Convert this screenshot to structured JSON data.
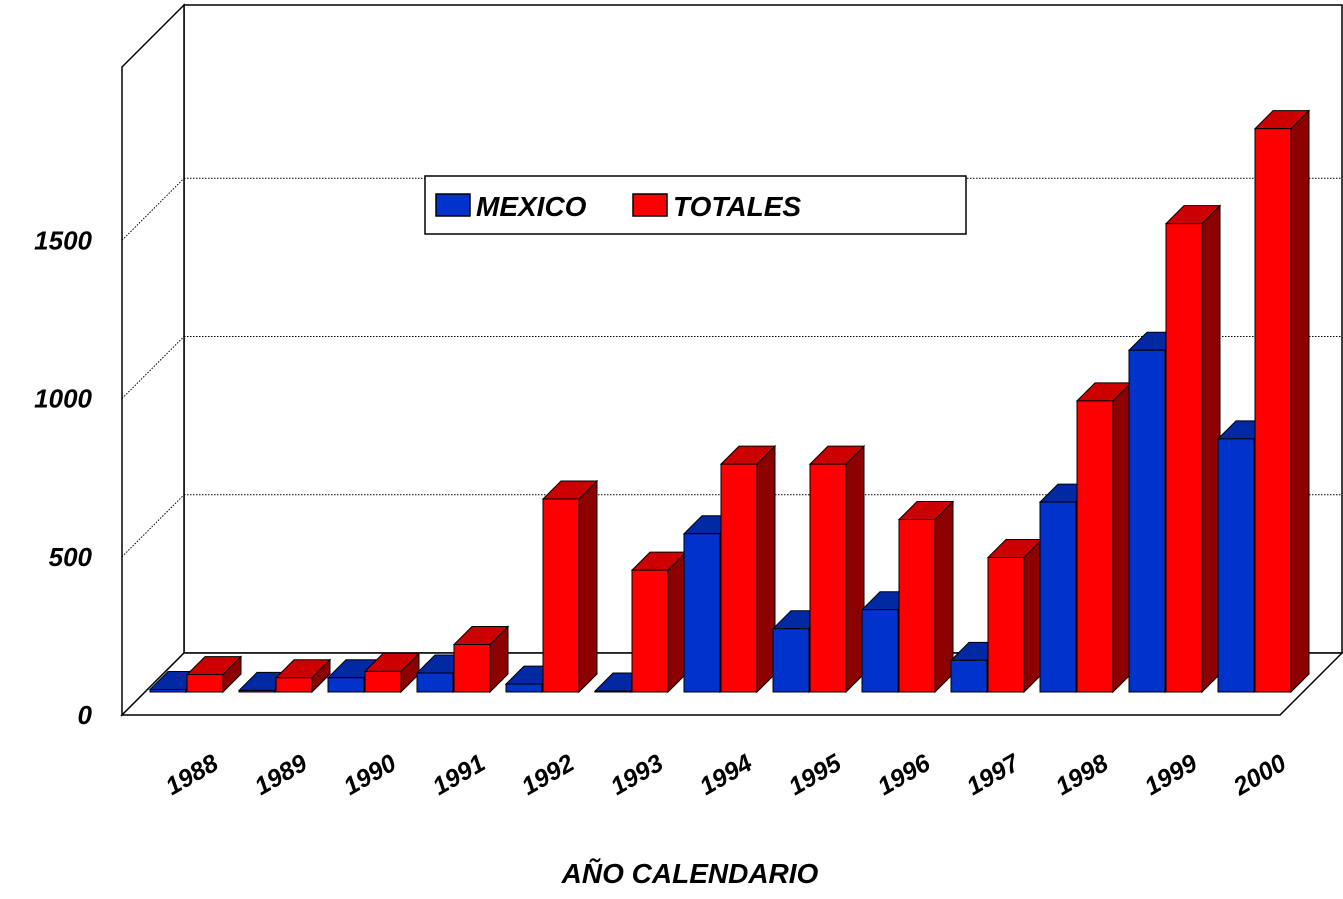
{
  "chart_data": {
    "type": "bar",
    "style": "3d-clustered-column",
    "categories": [
      "1988",
      "1989",
      "1990",
      "1991",
      "1992",
      "1993",
      "1994",
      "1995",
      "1996",
      "1997",
      "1998",
      "1999",
      "2000"
    ],
    "series": [
      {
        "name": "MEXICO",
        "color": "#0033CC",
        "values": [
          8,
          5,
          45,
          60,
          25,
          3,
          500,
          200,
          260,
          100,
          600,
          1080,
          800
        ]
      },
      {
        "name": "TOTALES",
        "color": "#FF0000",
        "values": [
          55,
          45,
          65,
          150,
          610,
          385,
          720,
          720,
          545,
          425,
          920,
          1480,
          1780
        ]
      }
    ],
    "ylim": [
      0,
      2000
    ],
    "yticks": [
      0,
      500,
      1000,
      1500
    ],
    "ytick_labels": [
      "0",
      "500",
      "1000",
      "1500"
    ],
    "xlabel": "AÑO CALENDARIO",
    "ylabel": "",
    "title": "",
    "grid": true,
    "legend_position": "upper-center"
  }
}
